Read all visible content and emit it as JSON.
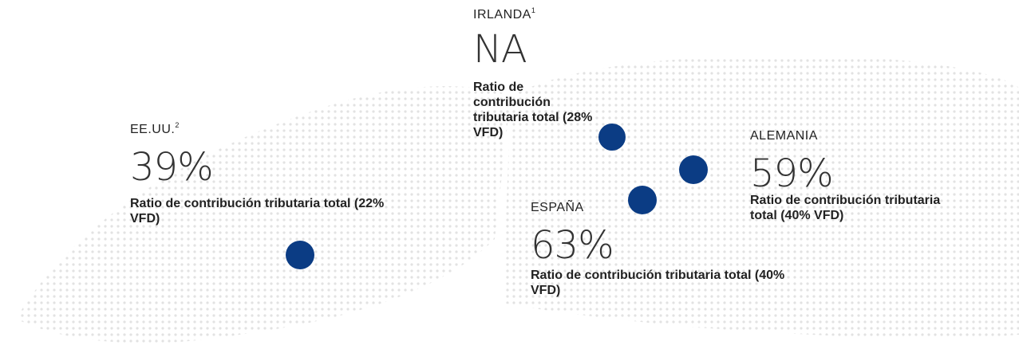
{
  "countries": [
    {
      "name": "IRLANDA",
      "note": "1",
      "value": "NA",
      "description": "Ratio de contribución tributaria total (28% VFD)"
    },
    {
      "name": "EE.UU.",
      "note": "2",
      "value": "39%",
      "description": "Ratio de contribución tributaria total (22% VFD)"
    },
    {
      "name": "ALEMANIA",
      "value": "59%",
      "description": "Ratio de contribución tributaria total (40% VFD)"
    },
    {
      "name": "ESPAÑA",
      "value": "63%",
      "description": "Ratio de contribución tributaria total (40% VFD)"
    }
  ]
}
